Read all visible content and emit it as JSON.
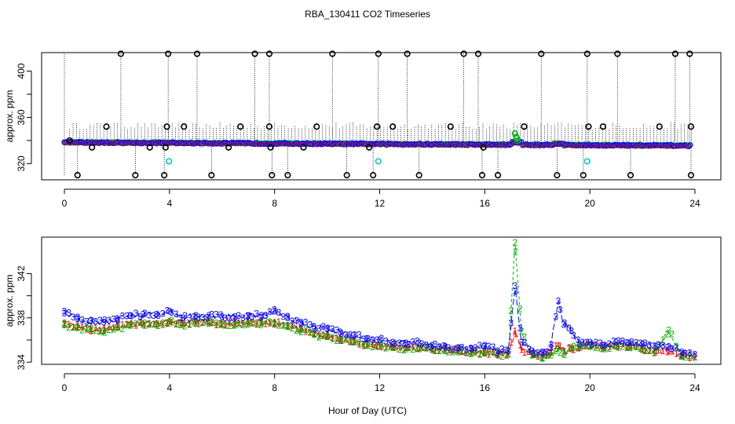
{
  "title": "RBA_130411  CO2 Timeseries",
  "xlabel": "Hour of Day (UTC)",
  "chart_data": [
    {
      "type": "scatter",
      "panel": "top",
      "ylabel": "approx. ppm",
      "xlim": [
        0,
        24
      ],
      "ylim": [
        306,
        416
      ],
      "xticks": [
        0,
        4,
        8,
        12,
        16,
        20,
        24
      ],
      "yticks": [
        320,
        360,
        400
      ],
      "colors": {
        "black": "#000000",
        "blue": "#0000ff",
        "green": "#00b000",
        "red": "#ff0000",
        "cyan": "#00c8c8"
      },
      "series": [
        {
          "name": "high outliers (black o)",
          "x": [
            2.15,
            3.95,
            5.05,
            7.25,
            7.8,
            10.2,
            11.95,
            13.05,
            15.2,
            15.75,
            18.15,
            19.9,
            21.05,
            23.25,
            23.8
          ],
          "y": [
            415,
            415,
            415,
            415,
            415,
            415,
            415,
            415,
            415,
            415,
            415,
            415,
            415,
            415,
            415
          ]
        },
        {
          "name": "low outliers (black o)",
          "x": [
            0.5,
            2.7,
            3.8,
            5.6,
            7.9,
            8.5,
            10.75,
            11.75,
            13.5,
            15.9,
            16.5,
            18.75,
            19.75,
            21.55,
            23.85
          ],
          "y": [
            310,
            310,
            310,
            310,
            310,
            310,
            310,
            310,
            310,
            310,
            310,
            310,
            310,
            310,
            310
          ]
        },
        {
          "name": "mid outliers (black o)",
          "x": [
            0.2,
            1.05,
            1.6,
            3.25,
            3.85,
            3.9,
            4.55,
            6.25,
            6.7,
            7.8,
            7.85,
            9.1,
            9.6,
            11.6,
            11.9,
            12.5,
            14.7,
            15.95,
            17.5,
            19.95,
            20.5,
            22.65,
            23.85
          ],
          "y": [
            340,
            334,
            352,
            334,
            334,
            352,
            352,
            334,
            352,
            352,
            334,
            334,
            352,
            334,
            352,
            352,
            352,
            334,
            352,
            352,
            352,
            352,
            352
          ]
        },
        {
          "name": "cyan outliers",
          "x": [
            3.98,
            11.95,
            19.9,
            17.22
          ],
          "y": [
            322,
            322,
            322,
            342
          ]
        },
        {
          "name": "spike (green)",
          "x": [
            17.15,
            17.2,
            17.25
          ],
          "y": [
            346,
            343,
            340
          ]
        }
      ]
    },
    {
      "type": "line",
      "panel": "bottom",
      "ylabel": "approx. ppm",
      "xlim": [
        0,
        24
      ],
      "ylim": [
        333.8,
        345.3
      ],
      "xticks": [
        0,
        4,
        8,
        12,
        16,
        20,
        24
      ],
      "yticks": [
        334,
        338,
        342
      ],
      "markers": [
        "1",
        "2",
        "3"
      ],
      "series": [
        {
          "name": "1",
          "color": "#ff0000",
          "x": [
            0,
            0.5,
            1,
            1.5,
            2,
            2.5,
            3,
            3.5,
            4,
            4.5,
            5,
            5.5,
            6,
            6.5,
            7,
            7.5,
            8,
            8.5,
            9,
            9.5,
            10,
            10.5,
            11,
            11.5,
            12,
            12.5,
            13,
            13.5,
            14,
            14.5,
            15,
            15.5,
            16,
            16.5,
            16.9,
            17.15,
            17.4,
            17.8,
            18.2,
            18.5,
            18.8,
            19.0,
            19.3,
            19.6,
            20,
            20.5,
            21,
            21.5,
            22,
            22.5,
            23,
            23.5,
            24
          ],
          "y": [
            337.5,
            337.2,
            337.0,
            336.9,
            337.2,
            337.4,
            337.5,
            337.5,
            337.7,
            337.5,
            337.6,
            337.6,
            337.5,
            337.5,
            337.6,
            337.6,
            337.6,
            337.3,
            337.0,
            336.6,
            336.4,
            336.1,
            335.9,
            335.6,
            335.5,
            335.4,
            335.3,
            335.3,
            335.2,
            335.1,
            335.0,
            334.9,
            334.9,
            334.8,
            334.8,
            336.8,
            335.1,
            334.7,
            334.6,
            334.9,
            335.5,
            335.0,
            335.3,
            335.3,
            335.5,
            335.3,
            335.5,
            335.4,
            335.2,
            335.0,
            335.0,
            334.6,
            334.5
          ]
        },
        {
          "name": "2",
          "color": "#00b000",
          "x": [
            0,
            0.5,
            1,
            1.5,
            2,
            2.5,
            3,
            3.5,
            4,
            4.5,
            5,
            5.5,
            6,
            6.5,
            7,
            7.5,
            8,
            8.5,
            9,
            9.5,
            10,
            10.5,
            11,
            11.5,
            12,
            12.5,
            13,
            13.5,
            14,
            14.5,
            15,
            15.5,
            16,
            16.5,
            16.9,
            17.15,
            17.4,
            17.8,
            18.2,
            18.5,
            18.8,
            19.0,
            19.3,
            19.6,
            20,
            20.5,
            21,
            21.5,
            22,
            22.5,
            23,
            23.5,
            24
          ],
          "y": [
            337.4,
            337.1,
            336.9,
            336.8,
            337.1,
            337.3,
            337.4,
            337.4,
            337.6,
            337.4,
            337.5,
            337.5,
            337.4,
            337.4,
            337.5,
            337.5,
            337.5,
            337.2,
            336.9,
            336.5,
            336.3,
            336.0,
            335.8,
            335.5,
            335.4,
            335.3,
            335.2,
            335.2,
            335.1,
            335.0,
            334.9,
            334.8,
            334.8,
            334.7,
            334.7,
            344.8,
            336.8,
            334.6,
            334.4,
            334.6,
            335.2,
            334.8,
            335.2,
            335.4,
            335.4,
            335.2,
            335.4,
            335.3,
            335.1,
            334.9,
            336.9,
            334.5,
            334.4
          ]
        },
        {
          "name": "3",
          "color": "#0000ff",
          "x": [
            0,
            0.5,
            1,
            1.5,
            2,
            2.5,
            3,
            3.5,
            4,
            4.5,
            5,
            5.5,
            6,
            6.5,
            7,
            7.5,
            8,
            8.5,
            9,
            9.5,
            10,
            10.5,
            11,
            11.5,
            12,
            12.5,
            13,
            13.5,
            14,
            14.5,
            15,
            15.5,
            16,
            16.5,
            16.9,
            17.15,
            17.4,
            17.8,
            18.2,
            18.5,
            18.8,
            19.0,
            19.3,
            19.6,
            20,
            20.5,
            21,
            21.5,
            22,
            22.5,
            23,
            23.5,
            24
          ],
          "y": [
            338.6,
            337.9,
            337.7,
            337.6,
            337.9,
            338.2,
            338.3,
            338.3,
            338.6,
            338.0,
            338.2,
            338.2,
            338.1,
            338.1,
            338.2,
            338.2,
            338.6,
            338.0,
            337.6,
            337.2,
            337.0,
            336.7,
            336.4,
            336.1,
            336.0,
            335.8,
            335.7,
            335.7,
            335.5,
            335.4,
            335.3,
            335.2,
            335.5,
            335.0,
            335.0,
            340.9,
            335.8,
            335.0,
            334.8,
            335.3,
            339.5,
            337.4,
            336.8,
            335.6,
            335.8,
            335.5,
            335.8,
            335.7,
            335.6,
            335.4,
            335.4,
            334.9,
            334.7
          ]
        }
      ]
    }
  ]
}
